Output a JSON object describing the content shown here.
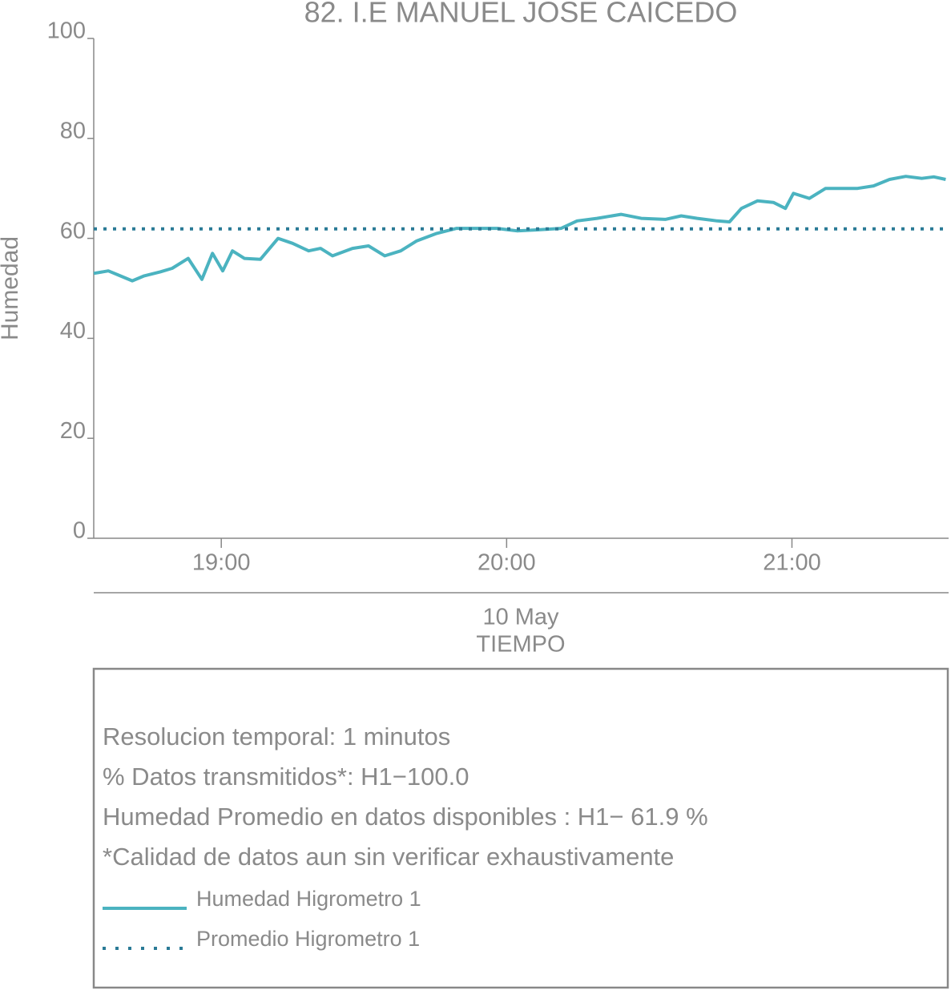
{
  "chart_data": {
    "type": "line",
    "title": "82. I.E MANUEL JOSE CAICEDO",
    "ylabel": "Humedad",
    "xlabel": "TIEMPO",
    "date_label": "10 May",
    "xlim": [
      18.553,
      21.549
    ],
    "ylim": [
      0,
      100
    ],
    "xticks": [
      {
        "value": 19,
        "label": "19:00"
      },
      {
        "value": 20,
        "label": "20:00"
      },
      {
        "value": 21,
        "label": "21:00"
      }
    ],
    "yticks": [
      0,
      20,
      40,
      60,
      80,
      100
    ],
    "series": [
      {
        "name": "Humedad Higrometro 1",
        "color": "#4bb3c0",
        "style": "solid",
        "x": [
          18.553,
          18.604,
          18.646,
          18.688,
          18.73,
          18.786,
          18.828,
          18.884,
          18.932,
          18.969,
          19.005,
          19.039,
          19.081,
          19.137,
          19.199,
          19.25,
          19.306,
          19.348,
          19.39,
          19.46,
          19.516,
          19.573,
          19.629,
          19.685,
          19.755,
          19.825,
          19.91,
          19.966,
          20.036,
          20.106,
          20.191,
          20.247,
          20.317,
          20.401,
          20.472,
          20.556,
          20.612,
          20.668,
          20.738,
          20.781,
          20.823,
          20.879,
          20.935,
          20.977,
          21.005,
          21.061,
          21.118,
          21.174,
          21.23,
          21.286,
          21.342,
          21.399,
          21.455,
          21.497,
          21.539
        ],
        "values": [
          53,
          53.5,
          52.5,
          51.5,
          52.5,
          53.3,
          54,
          56,
          51.8,
          57,
          53.5,
          57.5,
          56,
          55.8,
          60,
          59,
          57.5,
          58,
          56.5,
          58,
          58.5,
          56.5,
          57.5,
          59.5,
          61,
          62,
          62,
          62,
          61.5,
          61.7,
          62,
          63.5,
          64,
          64.8,
          64,
          63.8,
          64.5,
          64,
          63.5,
          63.3,
          66,
          67.5,
          67.2,
          66,
          69,
          68,
          70,
          70,
          70,
          70.5,
          71.8,
          72.4,
          72,
          72.3,
          71.8
        ]
      },
      {
        "name": "Promedio Higrometro 1",
        "color": "#2a7a96",
        "style": "dotted",
        "x": [
          18.553,
          21.539
        ],
        "values": [
          61.9,
          61.9
        ]
      }
    ],
    "info_lines": [
      "Resolucion temporal: 1 minutos",
      "% Datos transmitidos*: H1−100.0",
      "Humedad Promedio en datos disponibles : H1− 61.9 %",
      "*Calidad de datos aun sin verificar exhaustivamente"
    ]
  }
}
